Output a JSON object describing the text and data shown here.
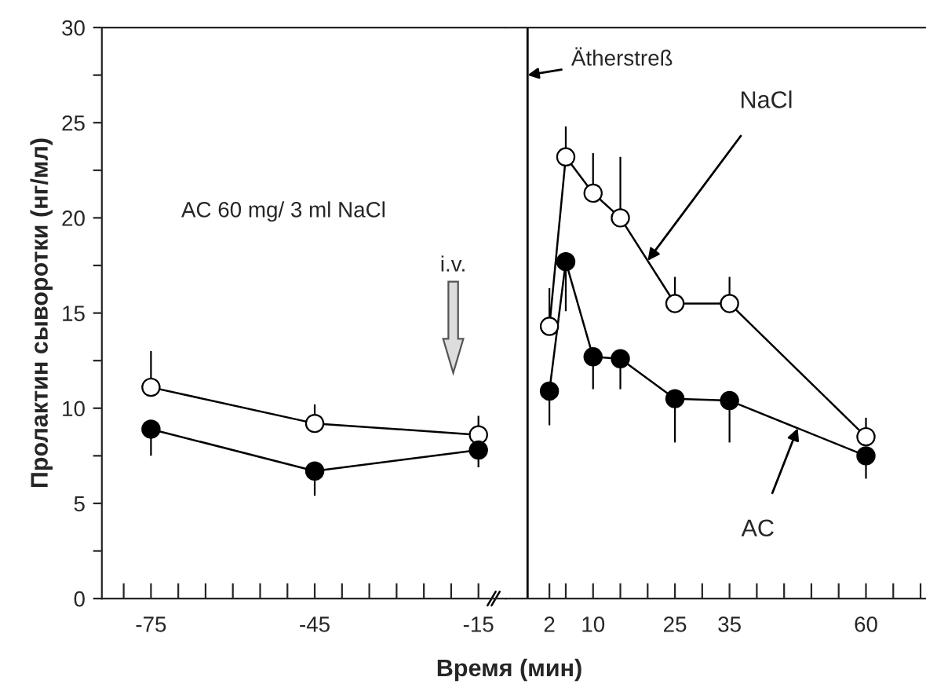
{
  "chart_data": [
    {
      "type": "line",
      "ylabel": "Пролактин сыворотки (нг/мл)",
      "xlabel": "Время (мин)",
      "marker": "circle",
      "x": [
        -75,
        -45,
        -15
      ],
      "series": [
        {
          "color": "#ffffff",
          "values": [
            11.1,
            9.2,
            8.6
          ],
          "errors": [
            [
              11.1,
              13.0
            ],
            [
              9.2,
              10.2
            ],
            [
              8.6,
              9.6
            ]
          ]
        },
        {
          "color": "#000000",
          "values": [
            8.9,
            6.7,
            7.8
          ],
          "errors": [
            [
              7.5,
              8.9
            ],
            [
              5.4,
              6.7
            ],
            [
              6.9,
              7.8
            ]
          ]
        }
      ],
      "xlim": [
        -84,
        -10
      ],
      "xticks": [
        -75,
        -45,
        -15,
        {
          "value": -80,
          "label": null
        },
        {
          "value": -70,
          "label": null
        },
        {
          "value": -65,
          "label": null
        },
        {
          "value": -60,
          "label": null
        },
        {
          "value": -55,
          "label": null
        },
        {
          "value": -50,
          "label": null
        },
        {
          "value": -40,
          "label": null
        },
        {
          "value": -35,
          "label": null
        },
        {
          "value": -30,
          "label": null
        },
        {
          "value": -25,
          "label": null
        },
        {
          "value": -20,
          "label": null
        }
      ],
      "ylim": [
        0,
        30
      ],
      "yticks": [
        0,
        5,
        10,
        15,
        20,
        25,
        30,
        {
          "value": 2.5,
          "label": null
        },
        {
          "value": 7.5,
          "label": null
        },
        {
          "value": 12.5,
          "label": null
        },
        {
          "value": 17.5,
          "label": null
        },
        {
          "value": 22.5,
          "label": null
        },
        {
          "value": 27.5,
          "label": null
        }
      ],
      "annotations": [
        "AC 60 mg/ 3 ml NaCl",
        "i.v."
      ]
    },
    {
      "type": "line",
      "marker": "circle",
      "tick_labels": "x",
      "x": [
        2,
        5,
        10,
        15,
        25,
        35,
        60
      ],
      "series": [
        {
          "name": "NaCl",
          "color": "#ffffff",
          "values": [
            14.3,
            23.2,
            21.3,
            20.0,
            15.5,
            15.5,
            8.5
          ],
          "errors": [
            [
              14.3,
              16.3
            ],
            [
              23.2,
              24.8
            ],
            [
              21.3,
              23.4
            ],
            [
              20.0,
              23.2
            ],
            [
              15.5,
              16.9
            ],
            [
              15.5,
              16.9
            ],
            [
              8.5,
              9.5
            ]
          ]
        },
        {
          "name": "AC",
          "color": "#000000",
          "values": [
            10.9,
            17.7,
            12.7,
            12.6,
            10.5,
            10.4,
            7.5
          ],
          "errors": [
            [
              9.1,
              10.9
            ],
            [
              15.1,
              17.7
            ],
            [
              11.0,
              12.7
            ],
            [
              11.0,
              12.6
            ],
            [
              8.2,
              10.5
            ],
            [
              8.2,
              10.4
            ],
            [
              6.3,
              7.5
            ]
          ]
        }
      ],
      "xlim": [
        -6,
        71
      ],
      "xticks": [
        2,
        10,
        25,
        35,
        60,
        {
          "value": 5,
          "label": null
        },
        {
          "value": 15,
          "label": null
        },
        {
          "value": 20,
          "label": null
        },
        {
          "value": 30,
          "label": null
        },
        {
          "value": 40,
          "label": null
        },
        {
          "value": 45,
          "label": null
        },
        {
          "value": 50,
          "label": null
        },
        {
          "value": 55,
          "label": null
        },
        {
          "value": 65,
          "label": null
        },
        {
          "value": 70,
          "label": null
        }
      ],
      "ylim": [
        0,
        30
      ],
      "ref_lines": [
        {
          "axis": "x",
          "value": -2,
          "label": "Ätherstreß",
          "color": "#000000"
        }
      ]
    }
  ]
}
